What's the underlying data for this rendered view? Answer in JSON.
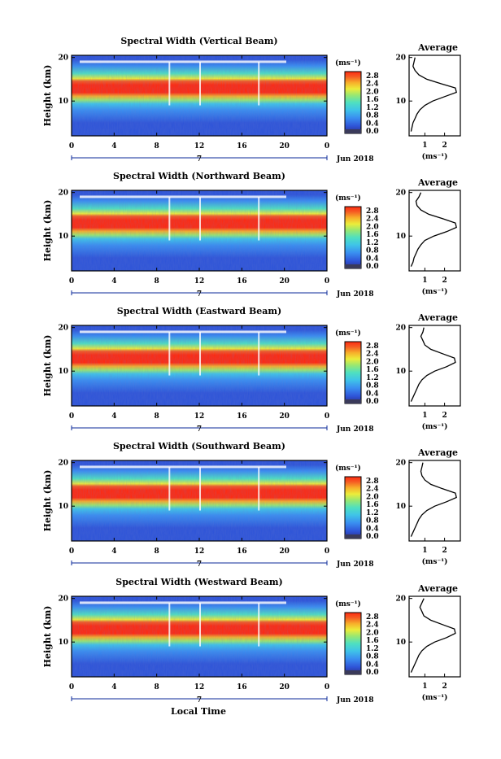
{
  "colorbar": {
    "unit": "(ms⁻¹)",
    "ticks": [
      "2.8",
      "2.4",
      "2.0",
      "1.6",
      "1.2",
      "0.8",
      "0.4",
      "0.0"
    ],
    "range": [
      0.0,
      2.8
    ],
    "stops": [
      "#2a2d8c",
      "#2f55d8",
      "#3a8ef0",
      "#3fc4e8",
      "#4fe0c0",
      "#9ae870",
      "#ecec3a",
      "#f7b02a",
      "#f55a23",
      "#ff2a10"
    ]
  },
  "x_axis": {
    "label": "Local Time",
    "ticks": [
      "0",
      "4",
      "8",
      "12",
      "16",
      "20",
      "0"
    ],
    "date_marker": "7",
    "date_label": "Jun 2018",
    "range_hours": [
      0,
      24
    ]
  },
  "y_axis": {
    "label": "Height (km)",
    "ticks": [
      "10",
      "20"
    ],
    "range_km": [
      2,
      20.5
    ]
  },
  "avg_axis": {
    "title": "Average",
    "ylabel": "(ms⁻¹)"
  },
  "chart_data": [
    {
      "type": "heatmap",
      "title": "Spectral Width (Vertical Beam)",
      "avg_xticks": [
        "1",
        "2"
      ],
      "avg_xlim": [
        0.2,
        2.8
      ],
      "profile": {
        "height": [
          3,
          4,
          5,
          6,
          7,
          8,
          9,
          10,
          11,
          12,
          13,
          14,
          15,
          16,
          17,
          18,
          19,
          20
        ],
        "width": [
          0.3,
          0.35,
          0.4,
          0.5,
          0.6,
          0.75,
          1.0,
          1.4,
          2.0,
          2.6,
          2.55,
          1.8,
          1.1,
          0.7,
          0.5,
          0.4,
          0.45,
          0.5
        ]
      }
    },
    {
      "type": "heatmap",
      "title": "Spectral Width (Northward Beam)",
      "avg_xticks": [
        "1",
        "2"
      ],
      "avg_xlim": [
        0.2,
        2.8
      ],
      "profile": {
        "height": [
          3,
          4,
          5,
          6,
          7,
          8,
          9,
          10,
          11,
          12,
          13,
          14,
          15,
          16,
          17,
          18,
          19,
          20
        ],
        "width": [
          0.3,
          0.4,
          0.45,
          0.55,
          0.65,
          0.8,
          1.0,
          1.45,
          2.1,
          2.6,
          2.55,
          1.9,
          1.2,
          0.8,
          0.6,
          0.55,
          0.7,
          0.8
        ]
      }
    },
    {
      "type": "heatmap",
      "title": "Spectral Width (Eastward Beam)",
      "avg_xticks": [
        "1",
        "2"
      ],
      "avg_xlim": [
        0.2,
        2.8
      ],
      "profile": {
        "height": [
          3,
          4,
          5,
          6,
          7,
          8,
          9,
          10,
          11,
          12,
          13,
          14,
          15,
          16,
          17,
          18,
          19,
          20
        ],
        "width": [
          0.3,
          0.4,
          0.5,
          0.6,
          0.7,
          0.85,
          1.1,
          1.5,
          2.1,
          2.55,
          2.5,
          1.9,
          1.3,
          1.0,
          0.9,
          0.8,
          0.9,
          0.95
        ]
      }
    },
    {
      "type": "heatmap",
      "title": "Spectral Width (Southward Beam)",
      "avg_xticks": [
        "1",
        "2"
      ],
      "avg_xlim": [
        0.2,
        2.8
      ],
      "profile": {
        "height": [
          3,
          4,
          5,
          6,
          7,
          8,
          9,
          10,
          11,
          12,
          13,
          14,
          15,
          16,
          17,
          18,
          19,
          20
        ],
        "width": [
          0.3,
          0.4,
          0.5,
          0.6,
          0.7,
          0.85,
          1.1,
          1.5,
          2.1,
          2.6,
          2.55,
          1.9,
          1.3,
          1.0,
          0.85,
          0.8,
          0.85,
          0.9
        ]
      }
    },
    {
      "type": "heatmap",
      "title": "Spectral Width (Westward Beam)",
      "avg_xticks": [
        "1",
        "2"
      ],
      "avg_xlim": [
        0.2,
        2.8
      ],
      "profile": {
        "height": [
          3,
          4,
          5,
          6,
          7,
          8,
          9,
          10,
          11,
          12,
          13,
          14,
          15,
          16,
          17,
          18,
          19,
          20
        ],
        "width": [
          0.3,
          0.4,
          0.5,
          0.6,
          0.7,
          0.85,
          1.1,
          1.5,
          2.1,
          2.55,
          2.5,
          1.9,
          1.3,
          0.95,
          0.85,
          0.75,
          0.85,
          0.95
        ]
      }
    }
  ]
}
